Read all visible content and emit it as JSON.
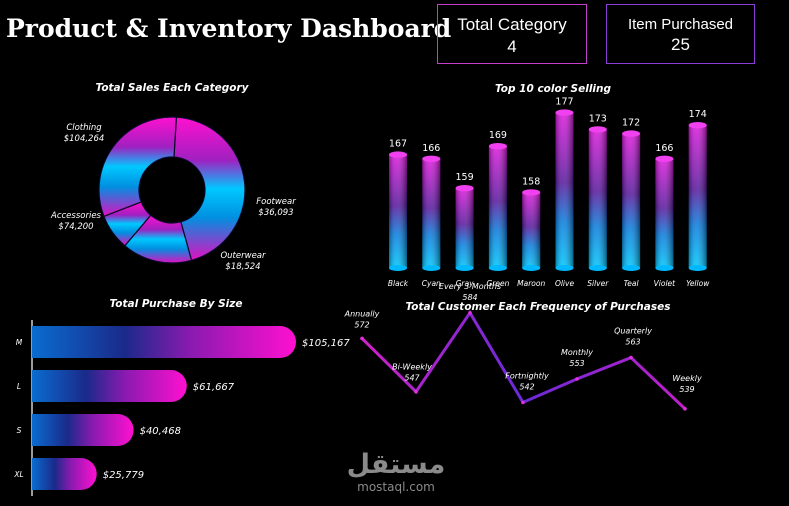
{
  "header": {
    "title": "Product & Inventory Dashboard",
    "kpi_total_category_label": "Total Category",
    "kpi_total_category_value": "4",
    "kpi_items_purchased_label": "Item Purchased",
    "kpi_items_purchased_value": "25"
  },
  "watermark": {
    "arabic": "مستقل",
    "latin": "mostaql.com"
  },
  "chart_data": [
    {
      "type": "pie",
      "title": "Total Sales Each Category",
      "categories": [
        "Clothing",
        "Footwear",
        "Outerwear",
        "Accessories"
      ],
      "values": [
        104264,
        36093,
        18524,
        74200
      ],
      "value_labels": [
        "$104,264",
        "$36,093",
        "$18,524",
        "$74,200"
      ],
      "donut": true
    },
    {
      "type": "bar",
      "title": "Top 10 color Selling",
      "categories": [
        "Black",
        "Cyan",
        "Gray",
        "Green",
        "Maroon",
        "Olive",
        "Silver",
        "Teal",
        "Violet",
        "Yellow"
      ],
      "values": [
        167,
        166,
        159,
        169,
        158,
        177,
        173,
        172,
        166,
        174
      ],
      "ylim": [
        140,
        180
      ]
    },
    {
      "type": "bar",
      "orientation": "horizontal",
      "title": "Total Purchase By Size",
      "categories": [
        "M",
        "L",
        "S",
        "XL"
      ],
      "values": [
        105167,
        61667,
        40468,
        25779
      ],
      "value_labels": [
        "$105,167",
        "$61,667",
        "$40,468",
        "$25,779"
      ]
    },
    {
      "type": "line",
      "title": "Total Customer Each Frequency of Purchases",
      "categories": [
        "Annually",
        "Bi-Weekly",
        "Every 3 Months",
        "Fortnightly",
        "Monthly",
        "Quarterly",
        "Weekly"
      ],
      "values": [
        572,
        547,
        584,
        542,
        553,
        563,
        539
      ],
      "ylim": [
        500,
        590
      ]
    }
  ]
}
